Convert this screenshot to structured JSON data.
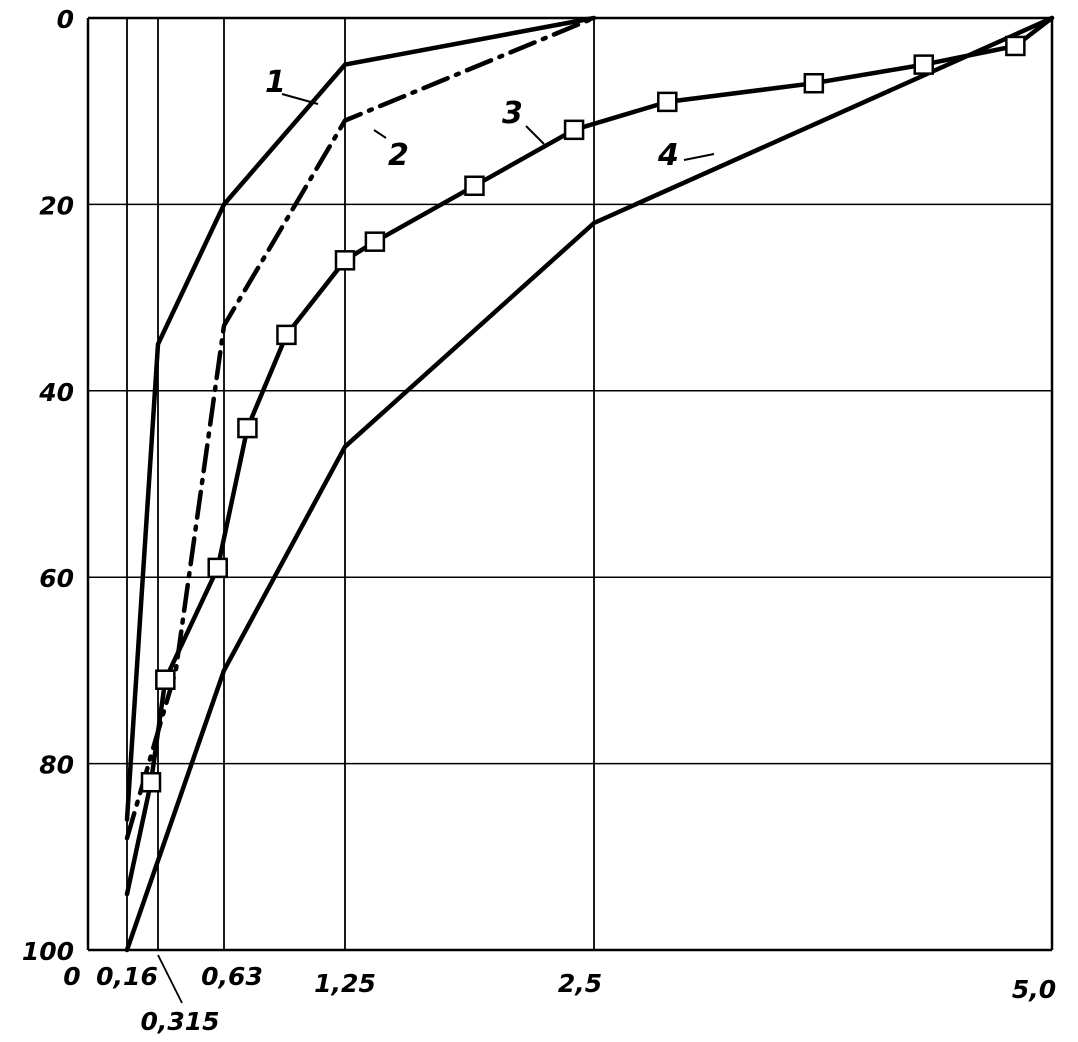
{
  "chart_data": {
    "type": "line",
    "title": "",
    "xlabel": "",
    "ylabel": "",
    "x_tick_labels": [
      "0",
      "0,16",
      "0,315",
      "0,63",
      "1,25",
      "2,5",
      "5,0"
    ],
    "y_tick_labels": [
      "0",
      "20",
      "40",
      "60",
      "80",
      "100"
    ],
    "y_axis_inverted": true,
    "grid": true,
    "series": [
      {
        "name": "1",
        "style": "solid",
        "marker": "none",
        "points": [
          [
            0.16,
            86
          ],
          [
            0.315,
            35
          ],
          [
            0.63,
            20
          ],
          [
            1.25,
            5
          ],
          [
            2.5,
            0
          ]
        ]
      },
      {
        "name": "2",
        "style": "dash-dot",
        "marker": "none",
        "points": [
          [
            0.16,
            88
          ],
          [
            0.4,
            70
          ],
          [
            0.63,
            33
          ],
          [
            1.25,
            11
          ],
          [
            2.5,
            0
          ]
        ]
      },
      {
        "name": "3",
        "style": "solid",
        "marker": "square",
        "points": [
          [
            0.16,
            94
          ],
          [
            0.28,
            82
          ],
          [
            0.35,
            71
          ],
          [
            0.6,
            59
          ],
          [
            0.75,
            44
          ],
          [
            0.95,
            34
          ],
          [
            1.25,
            26
          ],
          [
            1.4,
            24
          ],
          [
            1.9,
            18
          ],
          [
            2.4,
            12
          ],
          [
            2.9,
            9
          ],
          [
            3.7,
            7
          ],
          [
            4.3,
            5
          ],
          [
            4.8,
            3
          ],
          [
            5.0,
            0
          ]
        ]
      },
      {
        "name": "4",
        "style": "solid",
        "marker": "none",
        "points": [
          [
            0.16,
            100
          ],
          [
            0.63,
            70
          ],
          [
            1.25,
            46
          ],
          [
            2.5,
            22
          ],
          [
            5.0,
            0
          ]
        ]
      }
    ]
  }
}
